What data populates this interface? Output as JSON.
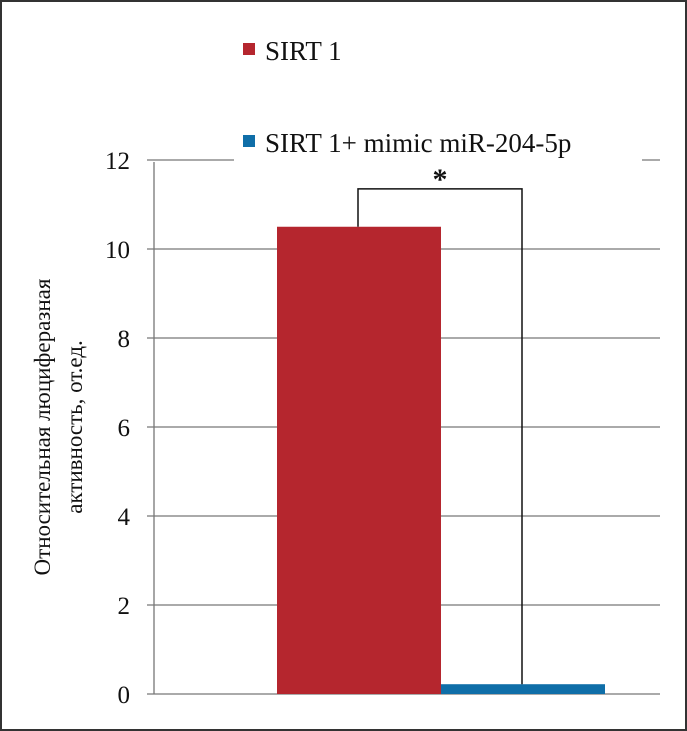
{
  "chart_data": {
    "type": "bar",
    "categories": [
      ""
    ],
    "series": [
      {
        "name": "SIRT 1",
        "values": [
          10.5
        ],
        "color": "#b5262e"
      },
      {
        "name": "SIRT 1+ mimic miR-204-5p",
        "values": [
          0.22
        ],
        "color": "#0f6ea8"
      }
    ],
    "ylabel_line1": "Относительная  люциферазная",
    "ylabel_line2": "активность,  от.ед.",
    "ylim": [
      0,
      12
    ],
    "yticks": [
      0,
      2,
      4,
      6,
      8,
      10,
      12
    ],
    "grid": true,
    "legend_placement": "top",
    "annotation": {
      "text": "*",
      "type": "significance-bracket",
      "level": 11.35
    }
  }
}
